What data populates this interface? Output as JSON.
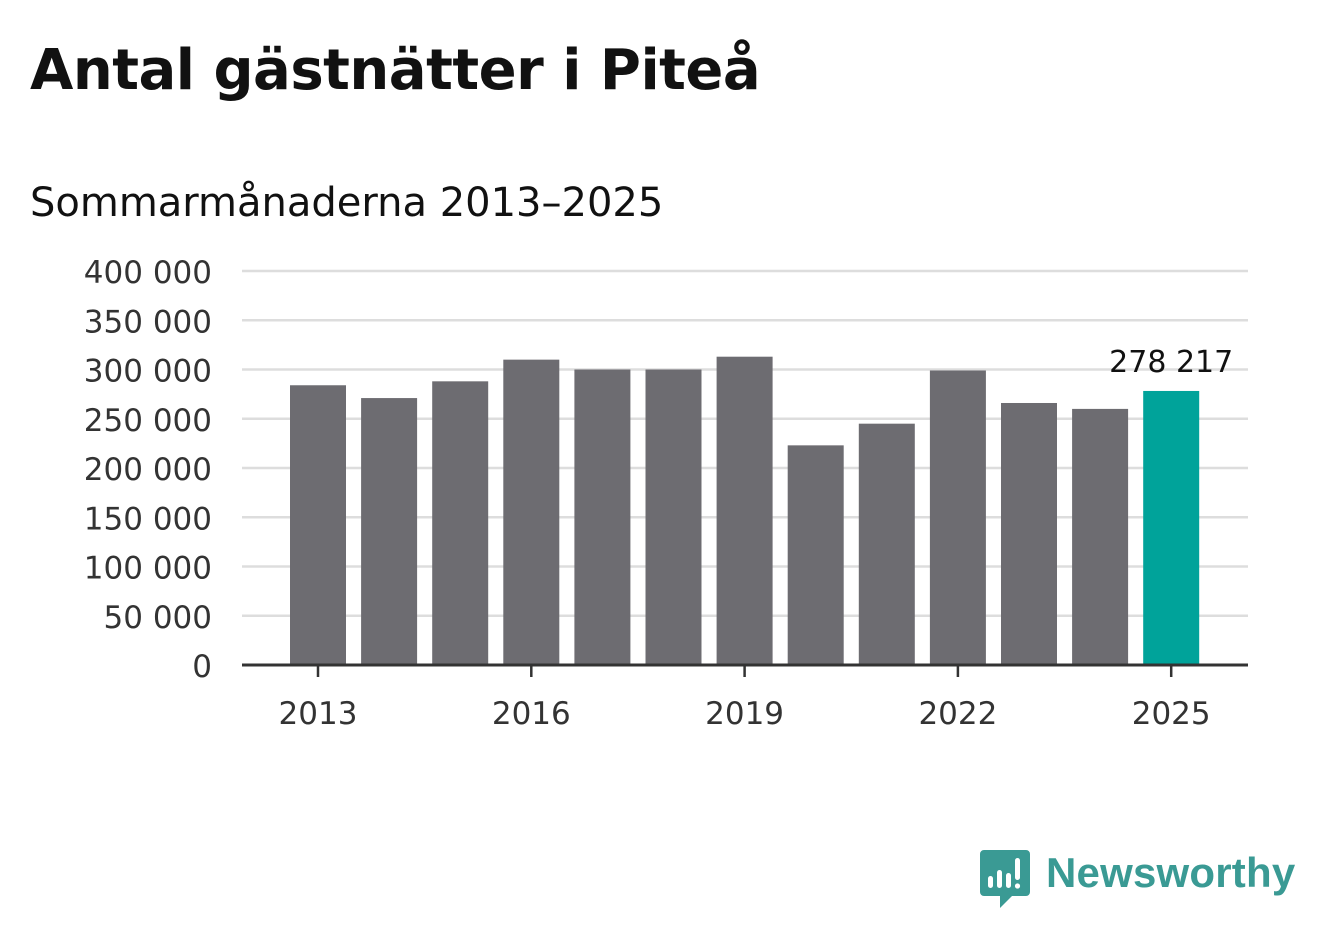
{
  "header": {
    "title": "Antal gästnätter i Piteå",
    "subtitle": "Sommarmånaderna 2013–2025"
  },
  "chart_data": {
    "type": "bar",
    "categories": [
      "2013",
      "2014",
      "2015",
      "2016",
      "2017",
      "2018",
      "2019",
      "2020",
      "2021",
      "2022",
      "2023",
      "2024",
      "2025"
    ],
    "values": [
      284000,
      271000,
      288000,
      310000,
      300000,
      300000,
      313000,
      223000,
      245000,
      299000,
      266000,
      260000,
      278217
    ],
    "x_tick_labels": [
      "2013",
      "2016",
      "2019",
      "2022",
      "2025"
    ],
    "y_ticks": [
      0,
      50000,
      100000,
      150000,
      200000,
      250000,
      300000,
      350000,
      400000
    ],
    "y_tick_labels": [
      "0",
      "50 000",
      "100 000",
      "150 000",
      "200 000",
      "250 000",
      "300 000",
      "350 000",
      "400 000"
    ],
    "ylim": [
      0,
      400000
    ],
    "highlight": {
      "category": "2025",
      "label": "278 217"
    },
    "colors": {
      "bar": "#6d6c71",
      "highlight": "#00a39a",
      "grid": "#dddddd",
      "axis": "#333333"
    },
    "grid": true,
    "xlabel": "",
    "ylabel": ""
  },
  "brand": {
    "name": "Newsworthy",
    "icon": "bar-chart-speech-bubble-icon",
    "color": "#3a9a94"
  }
}
